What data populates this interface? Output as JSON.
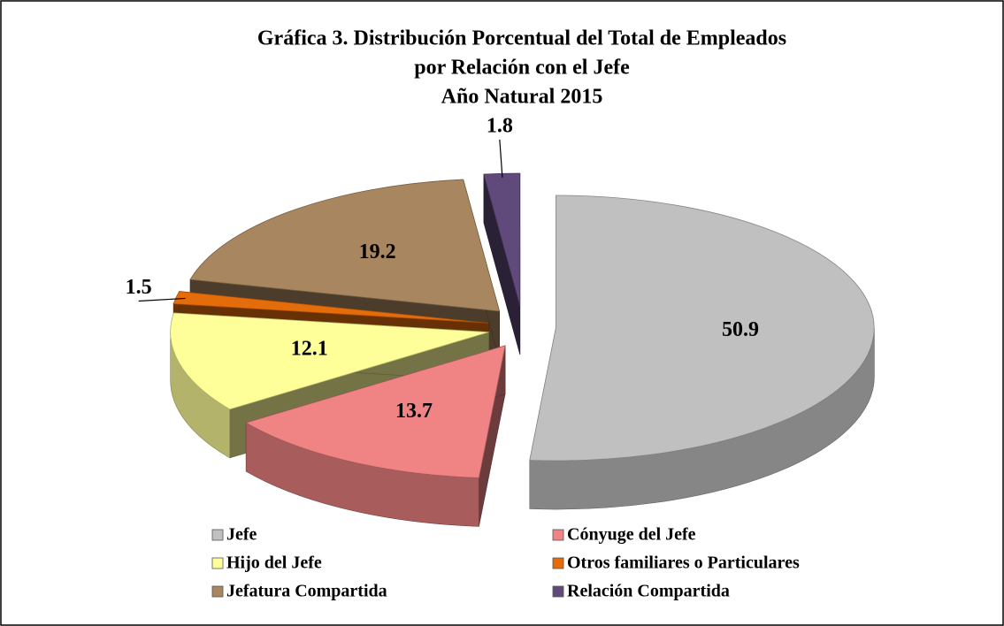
{
  "chart_data": {
    "type": "pie3d",
    "title": [
      "Gráfica 3. Distribución  Porcentual del Total de Empleados",
      "por Relación con el Jefe",
      "Año Natural 2015"
    ],
    "categories": [
      "Jefe",
      "Cónyuge del Jefe",
      "Hijo del Jefe",
      "Otros familiares o Particulares",
      "Jefatura Compartida",
      "Relación Compartida"
    ],
    "values": [
      50.9,
      13.7,
      12.1,
      1.5,
      19.2,
      1.8
    ],
    "colors": [
      "#c0c0c0",
      "#f08484",
      "#ffff99",
      "#e46c0a",
      "#a8865f",
      "#604a7b"
    ]
  }
}
